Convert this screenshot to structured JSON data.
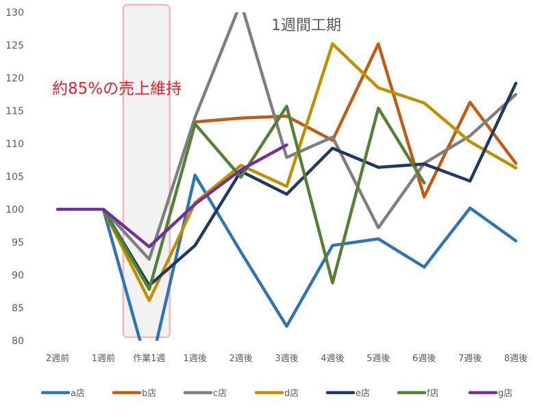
{
  "chart_data": {
    "type": "line",
    "categories": [
      "2週前",
      "1週前",
      "作業1週",
      "1週後",
      "2週後",
      "3週後",
      "4週後",
      "5週後",
      "6週後",
      "7週後",
      "8週後"
    ],
    "ylim": [
      80,
      130
    ],
    "yticks": [
      80,
      85,
      90,
      95,
      100,
      105,
      110,
      115,
      120,
      125,
      130
    ],
    "grid": false,
    "legend_position": "bottom",
    "highlight_band": {
      "category": "作業1週",
      "color": "#f2f2f2",
      "border": "#f4b8b8"
    },
    "series": [
      {
        "name": "a店",
        "color": "#2e75b6",
        "values": [
          null,
          100,
          75,
          105.2,
          93.5,
          82.2,
          94.5,
          95.5,
          91.2,
          100.2,
          95.2
        ]
      },
      {
        "name": "b店",
        "color": "#c55a11",
        "values": [
          null,
          null,
          null,
          113.3,
          113.9,
          114.2,
          110.5,
          125.2,
          101.9,
          116.3,
          107.0
        ]
      },
      {
        "name": "c店",
        "color": "#7f7f7f",
        "values": [
          null,
          100,
          92.4,
          114.0,
          131.5,
          107.9,
          111.0,
          97.2,
          107.0,
          111.2,
          117.5
        ]
      },
      {
        "name": "d店",
        "color": "#bf9000",
        "values": [
          null,
          100,
          86.1,
          101.0,
          106.7,
          103.5,
          125.2,
          118.5,
          116.2,
          110.3,
          106.3
        ]
      },
      {
        "name": "e店",
        "color": "#203864",
        "values": [
          null,
          100,
          88.4,
          94.5,
          105.8,
          102.3,
          109.3,
          106.4,
          106.9,
          104.3,
          119.2
        ]
      },
      {
        "name": "f店",
        "color": "#548235",
        "values": [
          null,
          100,
          87.8,
          113.0,
          104.9,
          115.7,
          88.8,
          115.4,
          104.0,
          null,
          null
        ]
      },
      {
        "name": "g店",
        "color": "#7030a0",
        "values": [
          100,
          100,
          94.3,
          100.8,
          106.0,
          109.8,
          null,
          null,
          null,
          null,
          null
        ]
      }
    ],
    "annotations": [
      {
        "text": "1週間工期",
        "color": "#595959"
      },
      {
        "text": "約85%の売上維持",
        "color": "#e8202a"
      }
    ]
  }
}
